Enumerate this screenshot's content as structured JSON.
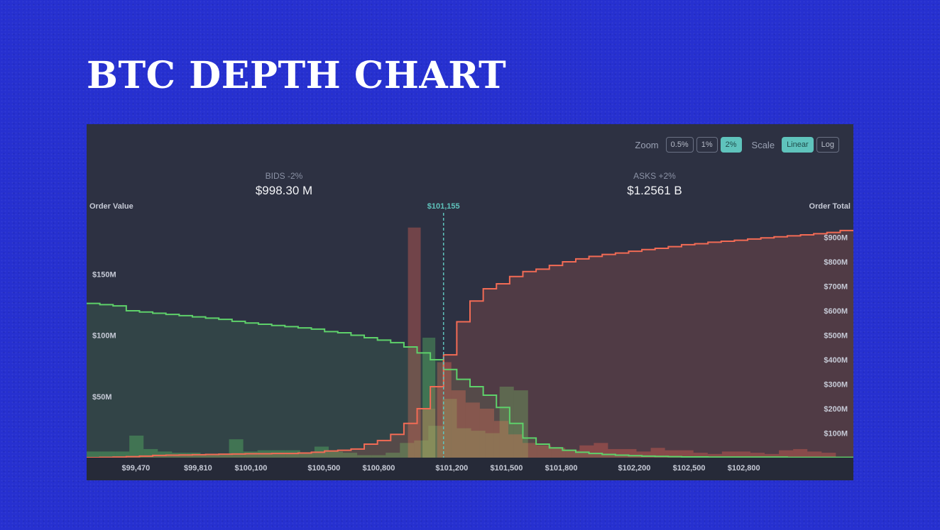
{
  "page_title": "BTC DEPTH CHART",
  "toolbar": {
    "zoom_label": "Zoom",
    "zoom_options": [
      "0.5%",
      "1%",
      "2%"
    ],
    "zoom_selected": "2%",
    "scale_label": "Scale",
    "scale_options": [
      "Linear",
      "Log"
    ],
    "scale_selected": "Linear"
  },
  "summary": {
    "bids_label": "BIDS -2%",
    "bids_value": "$998.30 M",
    "asks_label": "ASKS +2%",
    "asks_value": "$1.2561 B"
  },
  "colors": {
    "background": "#2630d0",
    "panel": "#2d3142",
    "bids": "#5ed16a",
    "asks": "#f26b55",
    "mid": "#5fc3bc"
  },
  "chart_data": {
    "type": "area",
    "mid_price": 101155,
    "mid_label": "$101,155",
    "left_axis_title": "Order Value",
    "right_axis_title": "Order Total",
    "x_range": [
      99200,
      103400
    ],
    "left_range": [
      0,
      200
    ],
    "right_range": [
      0,
      1000
    ],
    "x_ticks": [
      {
        "value": 99470,
        "label": "$99,470"
      },
      {
        "value": 99810,
        "label": "$99,810"
      },
      {
        "value": 100100,
        "label": "$100,100"
      },
      {
        "value": 100500,
        "label": "$100,500"
      },
      {
        "value": 100800,
        "label": "$100,800"
      },
      {
        "value": 101200,
        "label": "$101,200"
      },
      {
        "value": 101500,
        "label": "$101,500"
      },
      {
        "value": 101800,
        "label": "$101,800"
      },
      {
        "value": 102200,
        "label": "$102,200"
      },
      {
        "value": 102500,
        "label": "$102,500"
      },
      {
        "value": 102800,
        "label": "$102,800"
      }
    ],
    "left_ticks": [
      {
        "value": 50,
        "label": "$50M"
      },
      {
        "value": 100,
        "label": "$100M"
      },
      {
        "value": 150,
        "label": "$150M"
      }
    ],
    "right_ticks": [
      {
        "value": 100,
        "label": "$100M"
      },
      {
        "value": 200,
        "label": "$200M"
      },
      {
        "value": 300,
        "label": "$300M"
      },
      {
        "value": 400,
        "label": "$400M"
      },
      {
        "value": 500,
        "label": "$500M"
      },
      {
        "value": 600,
        "label": "$600M"
      },
      {
        "value": 700,
        "label": "$700M"
      },
      {
        "value": 800,
        "label": "$800M"
      },
      {
        "value": 900,
        "label": "$900M"
      }
    ],
    "series": [
      {
        "name": "Bids",
        "bin_start": 99200,
        "bin_width": 78,
        "order_value": [
          5,
          5,
          5,
          18,
          7,
          5,
          4,
          4,
          2,
          3,
          15,
          5,
          6,
          6,
          6,
          4,
          9,
          5,
          4,
          2,
          2,
          4,
          12,
          14,
          26,
          48,
          24,
          22,
          20,
          58,
          55
        ],
        "cumulative": [
          630,
          625,
          620,
          600,
          595,
          590,
          585,
          580,
          575,
          570,
          565,
          557,
          550,
          545,
          540,
          535,
          530,
          525,
          515,
          510,
          500,
          490,
          480,
          470,
          452,
          428,
          400,
          360,
          320,
          290,
          255,
          205,
          140,
          80,
          55,
          40,
          30,
          22,
          17,
          13,
          10,
          8,
          6,
          5,
          4,
          3,
          3,
          2,
          2,
          2,
          2,
          2,
          2,
          1,
          1,
          1,
          1,
          1
        ]
      },
      {
        "name": "Asks",
        "bin_start": 101120,
        "bin_width": 78,
        "order_value": [
          78,
          55,
          45,
          40,
          30,
          19,
          12,
          10,
          8,
          6,
          10,
          12,
          7,
          7,
          5,
          8,
          6,
          6,
          4,
          3,
          5,
          5,
          4,
          3,
          6,
          7,
          5,
          4
        ],
        "cumulative": [
          0,
          1,
          2,
          4,
          6,
          9,
          10,
          11,
          12,
          13,
          14,
          15,
          16,
          16,
          17,
          17,
          19,
          22,
          27,
          30,
          35,
          55,
          70,
          95,
          140,
          200,
          290,
          420,
          555,
          640,
          690,
          710,
          740,
          760,
          770,
          785,
          800,
          812,
          822,
          830,
          836,
          843,
          850,
          855,
          862,
          870,
          874,
          880,
          884,
          888,
          893,
          898,
          902,
          906,
          910,
          915,
          920,
          928
        ]
      }
    ]
  }
}
